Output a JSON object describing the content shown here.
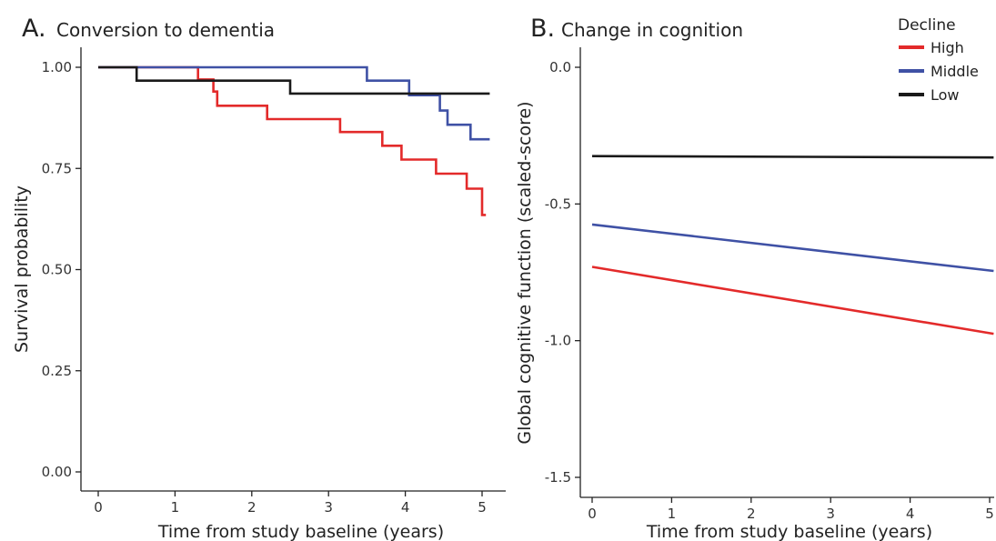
{
  "colors": {
    "High": "#e32a2a",
    "Middle": "#3f51a5",
    "Low": "#1a1a1a",
    "axis": "#222222"
  },
  "legend": {
    "title": "Decline",
    "items": [
      {
        "label": "High",
        "color": "#e32a2a"
      },
      {
        "label": "Middle",
        "color": "#3f51a5"
      },
      {
        "label": "Low",
        "color": "#1a1a1a"
      }
    ]
  },
  "chart_data": [
    {
      "panel": "A.",
      "title": "Conversion to dementia",
      "type": "line",
      "step": true,
      "xlabel": "Time from study baseline (years)",
      "ylabel": "Survival probability",
      "xlim": [
        0,
        5
      ],
      "ylim": [
        0,
        1
      ],
      "xticks": [
        0,
        1,
        2,
        3,
        4,
        5
      ],
      "yticks": [
        0,
        0.25,
        0.5,
        0.75,
        1
      ],
      "ytick_labels": [
        "0.00",
        "0.25",
        "0.50",
        "0.75",
        "1.00"
      ],
      "grid": false,
      "series": [
        {
          "name": "High",
          "x": [
            0,
            1.3,
            1.3,
            1.5,
            1.5,
            1.55,
            1.55,
            2.2,
            2.2,
            3.15,
            3.15,
            3.7,
            3.7,
            3.95,
            3.95,
            4.4,
            4.4,
            4.8,
            4.8,
            5.0,
            5.0,
            5.05
          ],
          "y": [
            1.0,
            1.0,
            0.97,
            0.97,
            0.94,
            0.94,
            0.905,
            0.905,
            0.872,
            0.872,
            0.84,
            0.84,
            0.806,
            0.806,
            0.772,
            0.772,
            0.737,
            0.737,
            0.7,
            0.7,
            0.635,
            0.635
          ]
        },
        {
          "name": "Middle",
          "x": [
            0,
            3.5,
            3.5,
            4.05,
            4.05,
            4.45,
            4.45,
            4.55,
            4.55,
            4.85,
            4.85,
            5.1
          ],
          "y": [
            1.0,
            1.0,
            0.967,
            0.967,
            0.931,
            0.931,
            0.893,
            0.893,
            0.858,
            0.858,
            0.822,
            0.822
          ]
        },
        {
          "name": "Low",
          "x": [
            0,
            0.5,
            0.5,
            2.5,
            2.5,
            5.1
          ],
          "y": [
            1.0,
            1.0,
            0.967,
            0.967,
            0.935,
            0.935
          ]
        }
      ]
    },
    {
      "panel": "B.",
      "title": "Change in cognition",
      "type": "line",
      "xlabel": "Time from study baseline (years)",
      "ylabel": "Global cognitive function (scaled-score)",
      "xlim": [
        0,
        5
      ],
      "ylim": [
        -1.6,
        0.05
      ],
      "xticks": [
        0,
        1,
        2,
        3,
        4,
        5
      ],
      "yticks": [
        0.0,
        -0.5,
        -1.0,
        -1.5
      ],
      "ytick_labels": [
        "0.0",
        "-0.5",
        "-1.0",
        "-1.5"
      ],
      "grid": false,
      "series": [
        {
          "name": "High",
          "x": [
            0,
            5.05
          ],
          "y": [
            -0.73,
            -0.975
          ]
        },
        {
          "name": "Middle",
          "x": [
            0,
            5.05
          ],
          "y": [
            -0.575,
            -0.745
          ]
        },
        {
          "name": "Low",
          "x": [
            0,
            5.05
          ],
          "y": [
            -0.325,
            -0.33
          ]
        }
      ]
    }
  ]
}
